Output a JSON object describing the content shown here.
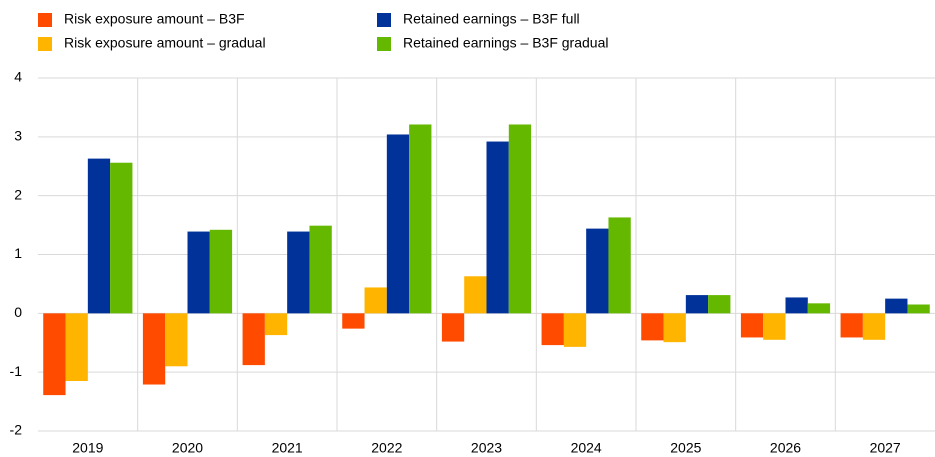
{
  "chart_data": {
    "type": "bar",
    "categories": [
      "2019",
      "2020",
      "2021",
      "2022",
      "2023",
      "2024",
      "2025",
      "2026",
      "2027"
    ],
    "series": [
      {
        "name": "Risk exposure amount – B3F",
        "color": "#ff4b00",
        "values": [
          -1.39,
          -1.21,
          -0.88,
          -0.26,
          -0.48,
          -0.54,
          -0.46,
          -0.41,
          -0.41
        ]
      },
      {
        "name": "Risk exposure amount – gradual",
        "color": "#ffb400",
        "values": [
          -1.15,
          -0.9,
          -0.37,
          0.44,
          0.63,
          -0.57,
          -0.49,
          -0.45,
          -0.45
        ]
      },
      {
        "name": "Retained earnings – B3F full",
        "color": "#003299",
        "values": [
          2.63,
          1.39,
          1.39,
          3.04,
          2.92,
          1.44,
          0.31,
          0.27,
          0.25
        ]
      },
      {
        "name": "Retained earnings – B3F gradual",
        "color": "#65b800",
        "values": [
          2.56,
          1.42,
          1.49,
          3.21,
          3.21,
          1.63,
          0.31,
          0.17,
          0.15
        ]
      }
    ],
    "ylim": [
      -2,
      4
    ],
    "yticks": [
      -2,
      -1,
      0,
      1,
      2,
      3,
      4
    ],
    "grid": true
  }
}
